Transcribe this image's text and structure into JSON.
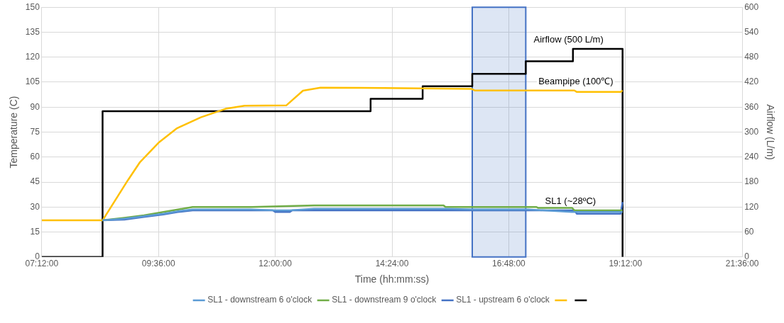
{
  "chart_data": {
    "type": "line",
    "xlabel": "Time (hh:mm:ss)",
    "ylabel": "Temperature (C)",
    "y2label": "Airflow (L/m)",
    "xlim": [
      7.2,
      21.6
    ],
    "xticks": [
      {
        "value": 7.2,
        "label": "07:12:00"
      },
      {
        "value": 9.6,
        "label": "09:36:00"
      },
      {
        "value": 12,
        "label": "12:00:00"
      },
      {
        "value": 14.4,
        "label": "14:24:00"
      },
      {
        "value": 16.8,
        "label": "16:48:00"
      },
      {
        "value": 19.2,
        "label": "19:12:00"
      },
      {
        "value": 21.6,
        "label": "21:36:00"
      }
    ],
    "ylim": [
      0,
      150
    ],
    "yticks": [
      0,
      15,
      30,
      45,
      60,
      75,
      90,
      105,
      120,
      135,
      150
    ],
    "y2lim": [
      0,
      600
    ],
    "y2ticks": [
      0,
      60,
      120,
      180,
      240,
      300,
      360,
      420,
      480,
      540,
      600
    ],
    "grid": true,
    "legend": "bottom",
    "marker": "none",
    "line_style": "solid",
    "bands": [
      {
        "axis": "x",
        "from": 16.05,
        "to": 17.15,
        "color": "#4472c4"
      }
    ],
    "annotations": [
      {
        "text": "Airflow (500 L/m)",
        "x": 18.03,
        "y": 125
      },
      {
        "text": "Beampipe (100℃)",
        "x": 18.18,
        "y": 100
      },
      {
        "text": "SL1 (~28ºC)",
        "x": 18.07,
        "y": 28
      }
    ],
    "series": [
      {
        "name": "SL1 - downstream 6 o'clock",
        "color": "#5b9bd5",
        "x": [
          8.45,
          8.9,
          9.3,
          9.7,
          10.0,
          10.3,
          11.5,
          12.0,
          12.3,
          12.8,
          14.0,
          15.5,
          16.1,
          17.2,
          18.1,
          19.14
        ],
        "values": [
          22,
          23,
          24.5,
          26,
          27.5,
          28.5,
          28.5,
          28,
          28,
          29,
          29,
          29,
          28.5,
          28.5,
          27,
          27
        ]
      },
      {
        "name": "SL1 - downstream 9 o'clock",
        "color": "#70ad47",
        "x": [
          8.45,
          8.9,
          9.3,
          9.7,
          10.0,
          10.3,
          11.5,
          12.8,
          14.0,
          15.46,
          15.5,
          17.37,
          17.4,
          18.1,
          18.15,
          19.14
        ],
        "values": [
          22,
          23.5,
          25,
          27,
          28.5,
          30,
          30,
          31,
          31,
          31,
          30,
          30,
          29.5,
          29.5,
          28,
          28
        ]
      },
      {
        "name": "SL1 - upstream 6 o'clock",
        "color": "#4472c4",
        "x": [
          8.45,
          8.9,
          9.3,
          9.7,
          10.0,
          10.3,
          11.5,
          11.95,
          12.0,
          12.3,
          12.35,
          14.0,
          15.5,
          17.2,
          18.15,
          18.2,
          19.1,
          19.14
        ],
        "values": [
          22,
          22.5,
          24,
          25.5,
          27,
          28,
          28,
          28,
          27,
          27,
          28,
          28,
          28,
          28,
          28,
          26,
          26,
          33
        ]
      },
      {
        "color": "#ffc000",
        "x": [
          7.2,
          8.45,
          8.97,
          9.22,
          9.6,
          9.98,
          10.47,
          10.98,
          11.37,
          12.23,
          12.57,
          12.93,
          14.24,
          16.03,
          16.1,
          18.15,
          18.2,
          19.1,
          19.14
        ],
        "values": [
          22,
          22,
          46.1,
          57,
          68.6,
          77.3,
          83.9,
          89,
          90.8,
          91.1,
          99.9,
          101.7,
          101.5,
          101,
          100,
          100,
          99.1,
          99.1,
          100
        ]
      },
      {
        "type": "step",
        "axis": "y2",
        "color": "#000000",
        "x": [
          7.2,
          8.45,
          13.96,
          15.03,
          16.05,
          17.15,
          18.12,
          19.14
        ],
        "values": [
          0,
          350,
          380,
          410,
          440,
          470,
          500,
          0
        ]
      }
    ]
  }
}
